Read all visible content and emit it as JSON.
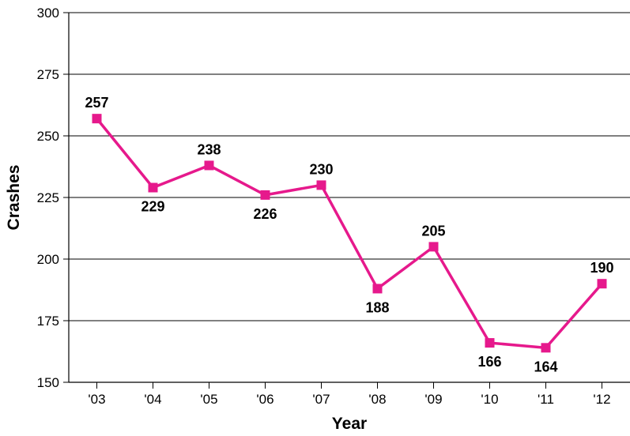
{
  "chart_data": {
    "type": "line",
    "title": "",
    "xlabel": "Year",
    "ylabel": "Crashes",
    "categories": [
      "'03",
      "'04",
      "'05",
      "'06",
      "'07",
      "'08",
      "'09",
      "'10",
      "'11",
      "'12"
    ],
    "values": [
      257,
      229,
      238,
      226,
      230,
      188,
      205,
      166,
      164,
      190
    ],
    "data_labels": [
      "257",
      "229",
      "238",
      "226",
      "230",
      "188",
      "205",
      "166",
      "164",
      "190"
    ],
    "label_positions": [
      "above",
      "below",
      "above",
      "below",
      "above",
      "below",
      "above",
      "below",
      "below",
      "above"
    ],
    "ylim": [
      150,
      300
    ],
    "yticks": [
      150,
      175,
      200,
      225,
      250,
      275,
      300
    ],
    "ytick_labels": [
      "150",
      "175",
      "200",
      "225",
      "250",
      "275",
      "300"
    ],
    "grid": "horizontal",
    "legend": "none",
    "line_color": "#e6198c",
    "marker": "square"
  }
}
